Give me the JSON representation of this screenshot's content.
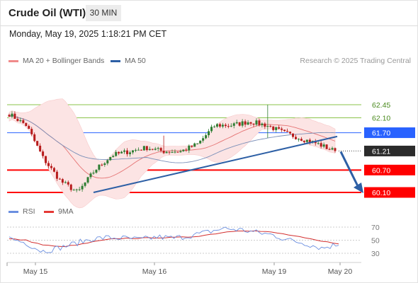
{
  "header": {
    "title": "Crude Oil (WTI)",
    "timeframe": "30 MIN",
    "datetime": "Monday, May 19, 2025 1:18:21 PM CET"
  },
  "legend": {
    "ma20": "MA 20 + Bollinger Bands",
    "ma50": "MA 50",
    "credit": "Research © 2025 Trading Central",
    "rsi": "RSI",
    "ma9": "9MA"
  },
  "colors": {
    "up": "#2e7d32",
    "down": "#b71c1c",
    "ma20": "#e57373",
    "band": "#fce4e4",
    "ma50": "#2d5fa5",
    "resistance": "#8bc34a",
    "pivot": "#2962ff",
    "support": "#ff0000",
    "rsi": "#6b8fe0",
    "rsi_ma": "#d32f2f"
  },
  "chart_data": [
    {
      "type": "candlestick",
      "title": "Crude Oil (WTI)",
      "interval": "30 MIN",
      "x_labels": [
        "May 15",
        "May 16",
        "May 19",
        "May 20"
      ],
      "close_path_approx": [
        62.2,
        61.9,
        61.0,
        60.4,
        60.1,
        60.7,
        61.1,
        61.2,
        61.3,
        61.2,
        61.2,
        61.4,
        61.9,
        61.9,
        62.0,
        61.9,
        61.7,
        61.55,
        61.4,
        61.2
      ],
      "indicators": [
        "MA 20",
        "Bollinger Bands",
        "MA 50"
      ],
      "levels": [
        {
          "label": "62.45",
          "kind": "resistance"
        },
        {
          "label": "62.10",
          "kind": "resistance"
        },
        {
          "label": "61.70",
          "kind": "pivot"
        },
        {
          "label": "61.21",
          "kind": "last"
        },
        {
          "label": "60.70",
          "kind": "support"
        },
        {
          "label": "60.10",
          "kind": "support"
        }
      ],
      "trendline": {
        "from": 60.1,
        "to": 61.6
      },
      "forecast": {
        "from": 61.21,
        "to": 60.1,
        "direction": "down"
      }
    },
    {
      "type": "line",
      "series": [
        {
          "name": "RSI",
          "values": [
            53,
            46,
            33,
            38,
            45,
            52,
            54,
            53,
            51,
            55,
            53,
            57,
            62,
            68,
            66,
            62,
            58,
            50,
            45,
            38,
            44
          ]
        },
        {
          "name": "9MA",
          "values": [
            52,
            50,
            43,
            40,
            42,
            47,
            51,
            53,
            53,
            54,
            54,
            55,
            58,
            62,
            65,
            64,
            62,
            58,
            53,
            48,
            45
          ]
        }
      ],
      "y_ticks": [
        "70",
        "50",
        "30"
      ],
      "ylim": [
        20,
        80
      ]
    }
  ]
}
